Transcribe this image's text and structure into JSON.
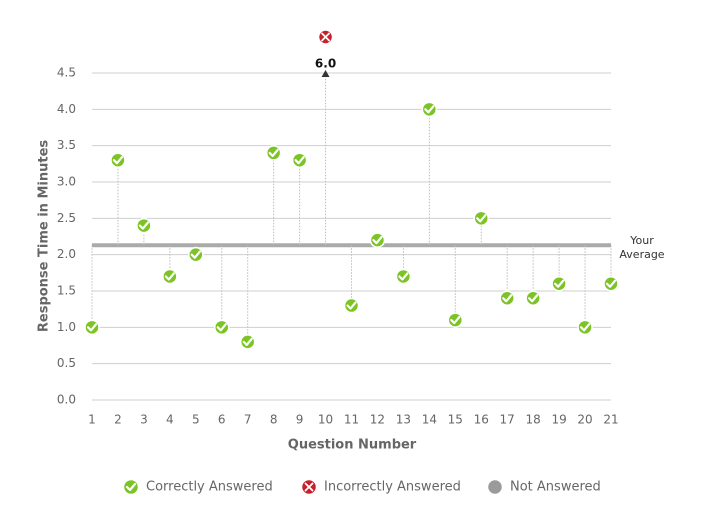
{
  "chart_data": {
    "type": "lollipop",
    "xlabel": "Question Number",
    "ylabel": "Response Time in Minutes",
    "categories": [
      "1",
      "2",
      "3",
      "4",
      "5",
      "6",
      "7",
      "8",
      "9",
      "10",
      "11",
      "12",
      "13",
      "14",
      "15",
      "16",
      "17",
      "18",
      "19",
      "20",
      "21"
    ],
    "values": [
      1.0,
      3.3,
      2.4,
      1.7,
      2.0,
      1.0,
      0.8,
      3.4,
      3.3,
      6.0,
      1.3,
      2.2,
      1.7,
      4.0,
      1.1,
      2.5,
      1.4,
      1.4,
      1.6,
      1.0,
      1.6
    ],
    "value_labels": [
      null,
      null,
      null,
      null,
      null,
      null,
      null,
      null,
      null,
      "6.0",
      null,
      null,
      null,
      null,
      null,
      null,
      null,
      null,
      null,
      null,
      null
    ],
    "status": [
      "correct",
      "correct",
      "correct",
      "correct",
      "correct",
      "correct",
      "correct",
      "correct",
      "correct",
      "incorrect",
      "correct",
      "correct",
      "correct",
      "correct",
      "correct",
      "correct",
      "correct",
      "correct",
      "correct",
      "correct",
      "correct"
    ],
    "average": 2.13,
    "average_label": [
      "Your",
      "Average"
    ],
    "ylim": [
      0,
      4.5
    ],
    "yticks": [
      {
        "value": 0,
        "label": "0.0"
      },
      0.5,
      {
        "value": 1,
        "label": "1.0"
      },
      1.5,
      {
        "value": 2,
        "label": "2.0"
      },
      2.5,
      {
        "value": 3,
        "label": "3.0"
      },
      3.5,
      {
        "value": 4,
        "label": "4.0"
      },
      4.5
    ],
    "grid": true,
    "legend": [
      {
        "name": "Correctly Answered",
        "key": "correct",
        "color": "#7cc425"
      },
      {
        "name": "Incorrectly Answered",
        "key": "incorrect",
        "color": "#c8202a"
      },
      {
        "name": "Not Answered",
        "key": "none",
        "color": "#9a9a9a"
      }
    ]
  }
}
